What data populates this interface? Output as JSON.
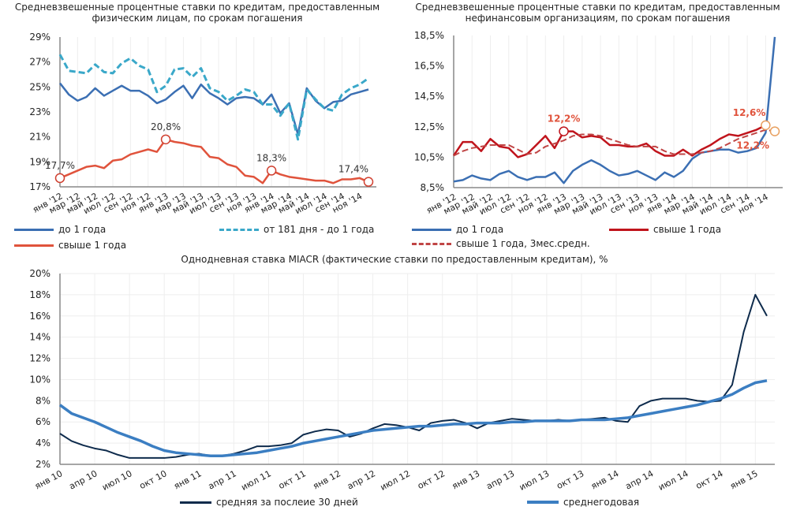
{
  "chart_data": [
    {
      "type": "line",
      "title": "Средневзвешенные процентные ставки по кредитам, предоставленным физическим лицам, по срокам погашения",
      "ylim": [
        17,
        29
      ],
      "yticks": [
        "29%",
        "27%",
        "25%",
        "23%",
        "21%",
        "19%",
        "17%"
      ],
      "xticks": [
        "янв '12",
        "мар '12",
        "май '12",
        "июл '12",
        "сен '12",
        "ноя '12",
        "янв '13",
        "мар '13",
        "май '13",
        "июл '13",
        "сен '13",
        "ноя '13",
        "янв '14",
        "мар '14",
        "май '14",
        "июл '14",
        "сен '14",
        "ноя '14"
      ],
      "series": [
        {
          "name": "до 1 года",
          "color": "#3b6fb3",
          "dash": false,
          "values": [
            25.3,
            24.4,
            23.9,
            24.2,
            24.9,
            24.3,
            24.7,
            25.1,
            24.7,
            24.7,
            24.3,
            23.7,
            24.0,
            24.6,
            25.1,
            24.1,
            25.2,
            24.5,
            24.1,
            23.6,
            24.1,
            24.2,
            24.1,
            23.6,
            24.4,
            22.9,
            23.7,
            21.2,
            24.9,
            23.9,
            23.3,
            23.8,
            23.9,
            24.4,
            24.6,
            24.8
          ]
        },
        {
          "name": "от 181 дня - до 1 года",
          "color": "#3aa8c9",
          "dash": true,
          "values": [
            27.6,
            26.3,
            26.2,
            26.1,
            26.8,
            26.2,
            26.1,
            26.9,
            27.3,
            26.7,
            26.4,
            24.6,
            25.1,
            26.4,
            26.5,
            25.8,
            26.5,
            24.9,
            24.6,
            23.9,
            24.3,
            24.8,
            24.6,
            23.6,
            23.6,
            22.7,
            23.7,
            20.8,
            24.8,
            24.0,
            23.3,
            23.1,
            24.4,
            24.9,
            25.2,
            25.7
          ]
        },
        {
          "name": "свыше 1 года",
          "color": "#e0533c",
          "dash": false,
          "values": [
            17.7,
            18.0,
            18.3,
            18.6,
            18.7,
            18.5,
            19.1,
            19.2,
            19.6,
            19.8,
            20.0,
            19.8,
            20.8,
            20.6,
            20.5,
            20.3,
            20.2,
            19.4,
            19.3,
            18.8,
            18.6,
            17.9,
            17.8,
            17.3,
            18.3,
            18.0,
            17.8,
            17.7,
            17.6,
            17.5,
            17.5,
            17.3,
            17.6,
            17.6,
            17.7,
            17.4
          ]
        }
      ],
      "annotations": [
        {
          "series": 2,
          "index": 0,
          "text": "17,7%"
        },
        {
          "series": 2,
          "index": 12,
          "text": "20,8%"
        },
        {
          "series": 2,
          "index": 24,
          "text": "18,3%"
        },
        {
          "series": 2,
          "index": 35,
          "text": "17,4%"
        }
      ]
    },
    {
      "type": "line",
      "title": "Средневзвешенные процентные ставки по кредитам, предоставленным нефинансовым организациям, по срокам погашения",
      "ylim": [
        8.5,
        18.5
      ],
      "yticks": [
        "18,5%",
        "16,5%",
        "14,5%",
        "12,5%",
        "10,5%",
        "8,5%"
      ],
      "xticks": [
        "янв '12",
        "мар '12",
        "май '12",
        "июл '12",
        "сен '12",
        "ноя '12",
        "янв '13",
        "мар '13",
        "май '13",
        "июл '13",
        "сен '13",
        "ноя '13",
        "янв '14",
        "мар '14",
        "май '14",
        "июл '14",
        "сен '14",
        "ноя '14"
      ],
      "series": [
        {
          "name": "до 1 года",
          "color": "#3b6fb3",
          "dash": false,
          "values": [
            8.9,
            9.0,
            9.3,
            9.1,
            9.0,
            9.4,
            9.6,
            9.2,
            9.0,
            9.2,
            9.2,
            9.5,
            8.8,
            9.6,
            10.0,
            10.3,
            10.0,
            9.6,
            9.3,
            9.4,
            9.6,
            9.3,
            9.0,
            9.5,
            9.2,
            9.6,
            10.4,
            10.8,
            10.9,
            11.0,
            11.0,
            10.8,
            10.9,
            11.1,
            12.1,
            18.4
          ]
        },
        {
          "name": "свыше 1 года",
          "color": "#c0141c",
          "dash": false,
          "values": [
            10.6,
            11.5,
            11.5,
            10.9,
            11.7,
            11.2,
            11.1,
            10.5,
            10.7,
            11.3,
            11.9,
            11.1,
            12.2,
            12.2,
            11.8,
            11.9,
            11.8,
            11.3,
            11.3,
            11.2,
            11.2,
            11.4,
            10.9,
            10.6,
            10.6,
            11.0,
            10.6,
            11.0,
            11.3,
            11.7,
            12.0,
            11.9,
            12.1,
            12.3,
            12.6
          ]
        },
        {
          "name": "свыше 1 года, 3мес.средн.",
          "color": "#c04545",
          "dash": true,
          "values": [
            10.6,
            10.9,
            11.1,
            11.2,
            11.3,
            11.3,
            11.3,
            11.0,
            10.7,
            10.8,
            11.2,
            11.4,
            11.6,
            11.9,
            12.0,
            12.0,
            11.9,
            11.7,
            11.5,
            11.3,
            11.2,
            11.2,
            11.2,
            10.9,
            10.7,
            10.7,
            10.7,
            10.8,
            10.9,
            11.1,
            11.4,
            11.7,
            11.9,
            12.1,
            12.3,
            12.2
          ]
        }
      ],
      "annotations": [
        {
          "series": 1,
          "index": 12,
          "text": "12,2%"
        },
        {
          "series": 1,
          "index": 34,
          "text": "12,6%"
        },
        {
          "series": 2,
          "index": 35,
          "text": "12,2%"
        }
      ]
    },
    {
      "type": "line",
      "title": "Однодневная ставка MIACR (фактические ставки по предоставленным кредитам), %",
      "ylim": [
        2,
        20
      ],
      "yticks": [
        "20%",
        "18%",
        "16%",
        "14%",
        "12%",
        "10%",
        "8%",
        "6%",
        "4%",
        "2%"
      ],
      "xticks": [
        "янв 10",
        "апр 10",
        "июл 10",
        "окт 10",
        "янв 11",
        "апр 11",
        "июл 11",
        "окт 11",
        "янв 12",
        "апр 12",
        "июл 12",
        "окт 12",
        "янв 13",
        "апр 13",
        "июл 13",
        "окт 13",
        "янв 14",
        "апр 14",
        "июл 14",
        "окт 14",
        "янв 15"
      ],
      "series": [
        {
          "name": "средняя за послеие 30 дней",
          "color": "#0e2b4c",
          "dash": false,
          "values": [
            4.9,
            4.2,
            3.8,
            3.5,
            3.3,
            2.9,
            2.6,
            2.6,
            2.6,
            2.6,
            2.7,
            2.9,
            3.0,
            2.8,
            2.8,
            3.0,
            3.3,
            3.7,
            3.7,
            3.8,
            4.0,
            4.8,
            5.1,
            5.3,
            5.2,
            4.6,
            4.9,
            5.4,
            5.8,
            5.7,
            5.5,
            5.2,
            5.9,
            6.1,
            6.2,
            5.9,
            5.4,
            5.9,
            6.1,
            6.3,
            6.2,
            6.1,
            6.1,
            6.2,
            6.1,
            6.2,
            6.3,
            6.4,
            6.1,
            6.0,
            7.5,
            8.0,
            8.2,
            8.2,
            8.2,
            8.0,
            7.9,
            8.0,
            9.5,
            14.5,
            18.0,
            16.0
          ]
        },
        {
          "name": "среднегодовая",
          "color": "#3b7ec2",
          "dash": false,
          "values": [
            7.6,
            6.8,
            6.4,
            6.0,
            5.5,
            5.0,
            4.6,
            4.2,
            3.7,
            3.3,
            3.1,
            3.0,
            2.9,
            2.8,
            2.8,
            2.9,
            3.0,
            3.1,
            3.3,
            3.5,
            3.7,
            4.0,
            4.2,
            4.4,
            4.6,
            4.8,
            5.0,
            5.2,
            5.3,
            5.4,
            5.5,
            5.6,
            5.6,
            5.7,
            5.8,
            5.8,
            5.9,
            5.9,
            5.9,
            6.0,
            6.0,
            6.1,
            6.1,
            6.1,
            6.1,
            6.2,
            6.2,
            6.2,
            6.3,
            6.4,
            6.6,
            6.8,
            7.0,
            7.2,
            7.4,
            7.6,
            7.9,
            8.2,
            8.6,
            9.2,
            9.7,
            9.9
          ]
        }
      ],
      "annotations": []
    }
  ]
}
